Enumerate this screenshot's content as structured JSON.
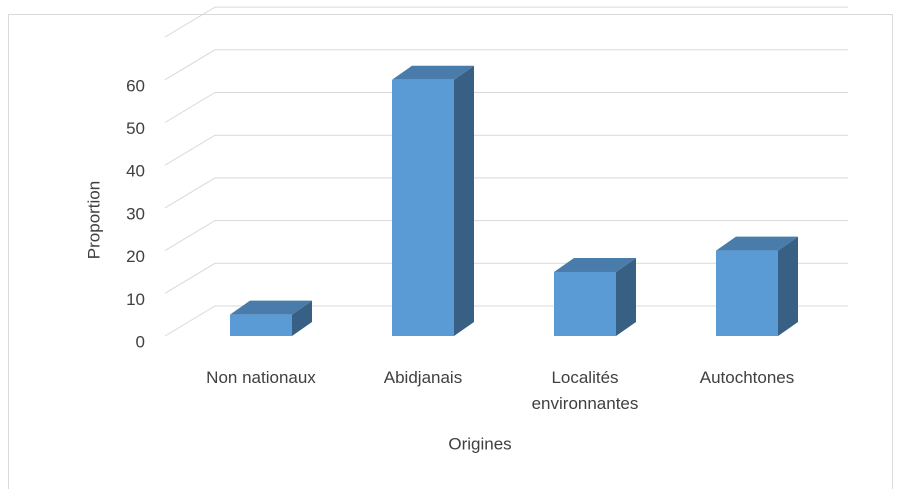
{
  "chart_data": {
    "type": "bar3d",
    "categories": [
      "Non nationaux",
      "Abidjanais",
      "Localités environnantes",
      "Autochtones"
    ],
    "values": [
      5,
      60,
      15,
      20
    ],
    "color": "#5b9bd5",
    "ylabel": "Proportion",
    "xlabel": "Origines",
    "ylim": [
      0,
      70
    ],
    "yticks": [
      0,
      10,
      20,
      30,
      40,
      50,
      60
    ],
    "grid": true
  }
}
